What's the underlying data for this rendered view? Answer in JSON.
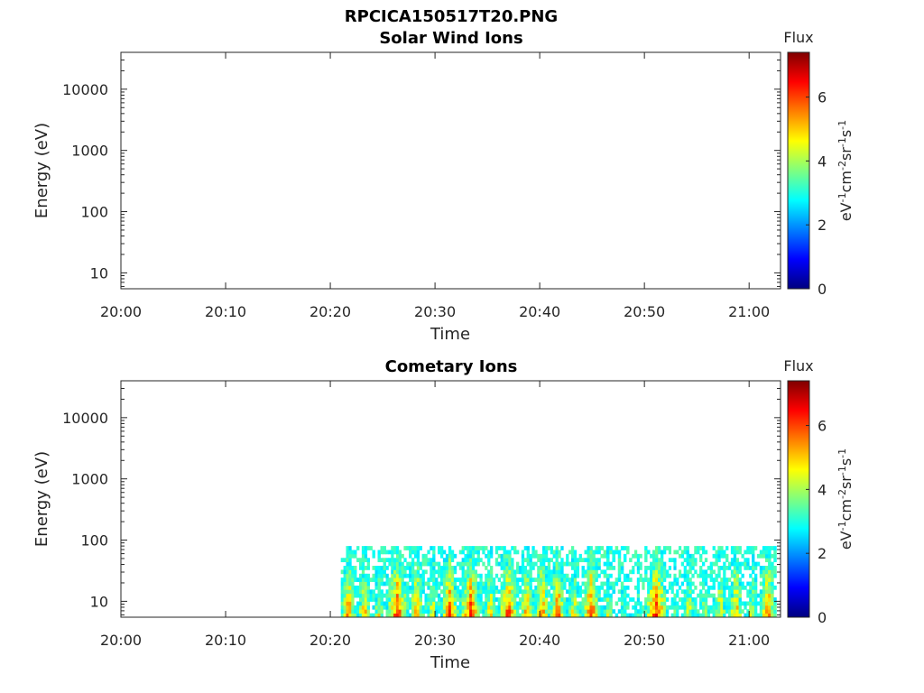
{
  "figure": {
    "title": "RPCICA150517T20.PNG"
  },
  "colormap": [
    "#00007f",
    "#0000ff",
    "#007fff",
    "#00ffff",
    "#7fff7f",
    "#ffff00",
    "#ff7f00",
    "#ff0000",
    "#7f0000"
  ],
  "chart_data": [
    {
      "type": "heatmap",
      "title": "Solar Wind Ions",
      "xlabel": "Time",
      "ylabel": "Energy (eV)",
      "x_tick_labels": [
        "20:00",
        "20:10",
        "20:20",
        "20:30",
        "20:40",
        "20:50",
        "21:00"
      ],
      "x_tick_minutes": [
        0,
        10,
        20,
        30,
        40,
        50,
        60
      ],
      "xlim_minutes": [
        0,
        63
      ],
      "y_scale": "log",
      "y_tick_labels": [
        "10",
        "100",
        "1000",
        "10000"
      ],
      "y_tick_values": [
        10,
        100,
        1000,
        10000
      ],
      "ylim": [
        5.5,
        40000
      ],
      "colorbar": {
        "title": "Flux",
        "label": "eV-1cm-2sr-1s-1",
        "tick_labels": [
          "0",
          "2",
          "4",
          "6"
        ],
        "tick_values": [
          0,
          2,
          4,
          6
        ],
        "range": [
          0,
          7.4
        ]
      },
      "blocks": []
    },
    {
      "type": "heatmap",
      "title": "Cometary Ions",
      "xlabel": "Time",
      "ylabel": "Energy (eV)",
      "x_tick_labels": [
        "20:00",
        "20:10",
        "20:20",
        "20:30",
        "20:40",
        "20:50",
        "21:00"
      ],
      "x_tick_minutes": [
        0,
        10,
        20,
        30,
        40,
        50,
        60
      ],
      "xlim_minutes": [
        0,
        63
      ],
      "y_scale": "log",
      "y_tick_labels": [
        "10",
        "100",
        "1000",
        "10000"
      ],
      "y_tick_values": [
        10,
        100,
        1000,
        10000
      ],
      "ylim": [
        5.5,
        40000
      ],
      "colorbar": {
        "title": "Flux",
        "label": "eV-1cm-2sr-1s-1",
        "tick_labels": [
          "0",
          "2",
          "4",
          "6"
        ],
        "tick_values": [
          0,
          2,
          4,
          6
        ],
        "range": [
          0,
          7.4
        ]
      },
      "data_coverage_minutes": [
        21,
        62.6
      ],
      "energy_range_eV": [
        5.5,
        80
      ],
      "blocks": [
        {
          "t0": 21.0,
          "t1": 22.5,
          "peak": 5.8
        },
        {
          "t0": 22.5,
          "t1": 24.0,
          "peak": 5.2
        },
        {
          "t0": 24.0,
          "t1": 25.3,
          "peak": 4.4
        },
        {
          "t0": 25.3,
          "t1": 27.5,
          "peak": 6.3
        },
        {
          "t0": 27.5,
          "t1": 29.0,
          "peak": 5.6
        },
        {
          "t0": 29.0,
          "t1": 30.5,
          "peak": 4.6
        },
        {
          "t0": 30.5,
          "t1": 32.3,
          "peak": 6.0
        },
        {
          "t0": 32.3,
          "t1": 34.5,
          "peak": 6.2
        },
        {
          "t0": 34.5,
          "t1": 36.0,
          "peak": 5.0
        },
        {
          "t0": 36.0,
          "t1": 38.0,
          "peak": 6.1
        },
        {
          "t0": 38.0,
          "t1": 39.5,
          "peak": 5.3
        },
        {
          "t0": 39.5,
          "t1": 41.0,
          "peak": 5.7
        },
        {
          "t0": 41.0,
          "t1": 42.5,
          "peak": 6.1
        },
        {
          "t0": 42.5,
          "t1": 44.0,
          "peak": 4.8
        },
        {
          "t0": 44.0,
          "t1": 45.8,
          "peak": 6.2
        },
        {
          "t0": 45.8,
          "t1": 47.2,
          "peak": 4.2
        },
        {
          "t0": 47.2,
          "t1": 48.8,
          "peak": 3.6
        },
        {
          "t0": 48.8,
          "t1": 50.0,
          "peak": 3.2
        },
        {
          "t0": 50.0,
          "t1": 52.3,
          "peak": 6.3
        },
        {
          "t0": 52.3,
          "t1": 53.5,
          "peak": 3.4
        },
        {
          "t0": 53.5,
          "t1": 55.0,
          "peak": 4.6
        },
        {
          "t0": 55.0,
          "t1": 56.5,
          "peak": 3.8
        },
        {
          "t0": 56.5,
          "t1": 58.0,
          "peak": 4.8
        },
        {
          "t0": 58.0,
          "t1": 59.5,
          "peak": 5.4
        },
        {
          "t0": 59.5,
          "t1": 61.0,
          "peak": 4.3
        },
        {
          "t0": 61.0,
          "t1": 62.6,
          "peak": 5.8
        }
      ]
    }
  ]
}
